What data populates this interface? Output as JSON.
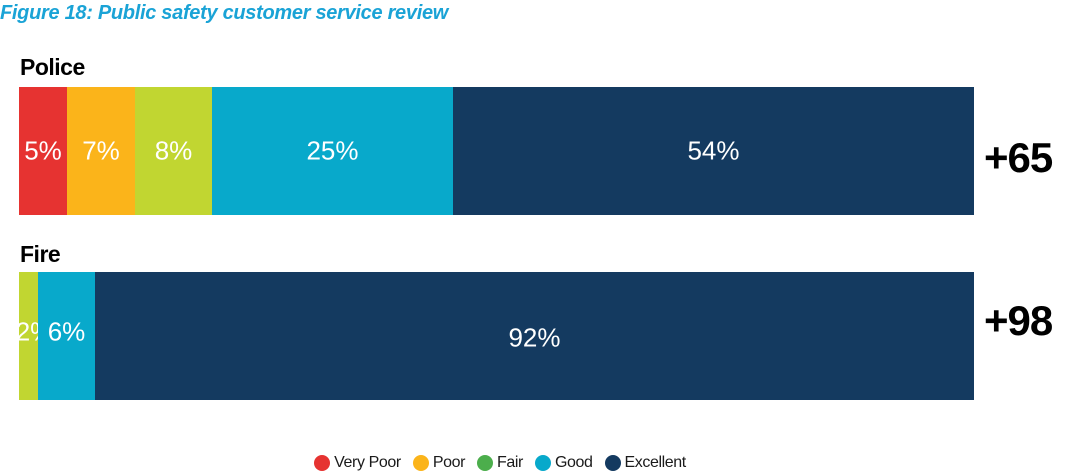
{
  "title": "Figure 18: Public safety customer service review",
  "colors": {
    "title": "#1aa3d6",
    "very_poor": "#e63331",
    "poor": "#fbb41a",
    "fair_bar": "#c1d631",
    "fair_legend": "#4cae4c",
    "good": "#08a9cb",
    "excellent": "#143a60"
  },
  "chart_data": {
    "type": "bar",
    "orientation": "horizontal",
    "stacked": true,
    "title": "Figure 18: Public safety customer service review",
    "categories": [
      "Police",
      "Fire"
    ],
    "series": [
      {
        "name": "Very Poor",
        "values": [
          5,
          0
        ],
        "labels": [
          "5%",
          ""
        ],
        "color": "#e63331"
      },
      {
        "name": "Poor",
        "values": [
          7,
          0
        ],
        "labels": [
          "7%",
          ""
        ],
        "color": "#fbb41a"
      },
      {
        "name": "Fair",
        "values": [
          8,
          2
        ],
        "labels": [
          "8%",
          "2%"
        ],
        "color": "#c1d631"
      },
      {
        "name": "Good",
        "values": [
          25,
          6
        ],
        "labels": [
          "25%",
          "6%"
        ],
        "color": "#08a9cb"
      },
      {
        "name": "Excellent",
        "values": [
          54,
          92
        ],
        "labels": [
          "54%",
          "92%"
        ],
        "color": "#143a60"
      }
    ],
    "net_scores": [
      "+65",
      "+98"
    ],
    "legend_placement": "bottom",
    "legend": [
      {
        "name": "Very Poor",
        "color": "#e63331"
      },
      {
        "name": "Poor",
        "color": "#fbb41a"
      },
      {
        "name": "Fair",
        "color": "#4cae4c"
      },
      {
        "name": "Good",
        "color": "#08a9cb"
      },
      {
        "name": "Excellent",
        "color": "#143a60"
      }
    ],
    "grid": false,
    "axes_visible": false
  }
}
